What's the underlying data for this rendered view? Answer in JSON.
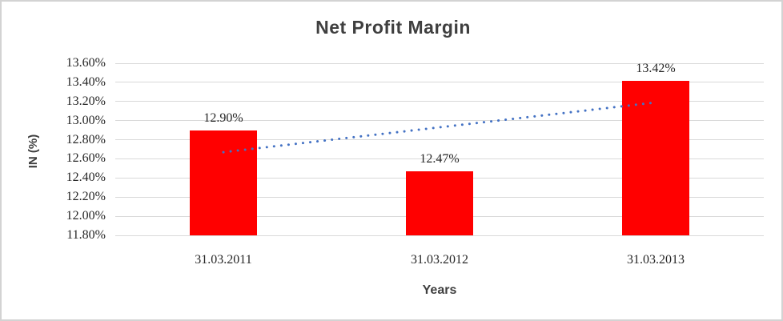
{
  "window": {
    "background": "#ffffff",
    "border_color": "#d3d3d3"
  },
  "chart_data": {
    "type": "bar",
    "title": "Net Profit Margin",
    "xlabel": "Years",
    "ylabel": "IN (%)",
    "categories": [
      "31.03.2011",
      "31.03.2012",
      "31.03.2013"
    ],
    "values": [
      12.9,
      12.47,
      13.42
    ],
    "data_labels": [
      "12.90%",
      "12.47%",
      "13.42%"
    ],
    "y_ticks": [
      "13.60%",
      "13.40%",
      "13.20%",
      "13.00%",
      "12.80%",
      "12.60%",
      "12.40%",
      "12.20%",
      "12.00%",
      "11.80%"
    ],
    "ylim": [
      11.8,
      13.6
    ],
    "y_tick_step": 0.2,
    "grid": true,
    "legend": "none",
    "bar_color": "#ff0000",
    "gridline_color": "#d9d9d9",
    "title_color": "#3f3f3f",
    "trendline": {
      "type": "linear",
      "style": "dotted",
      "color": "#4472c4",
      "start_value": 12.67,
      "end_value": 13.19
    }
  }
}
